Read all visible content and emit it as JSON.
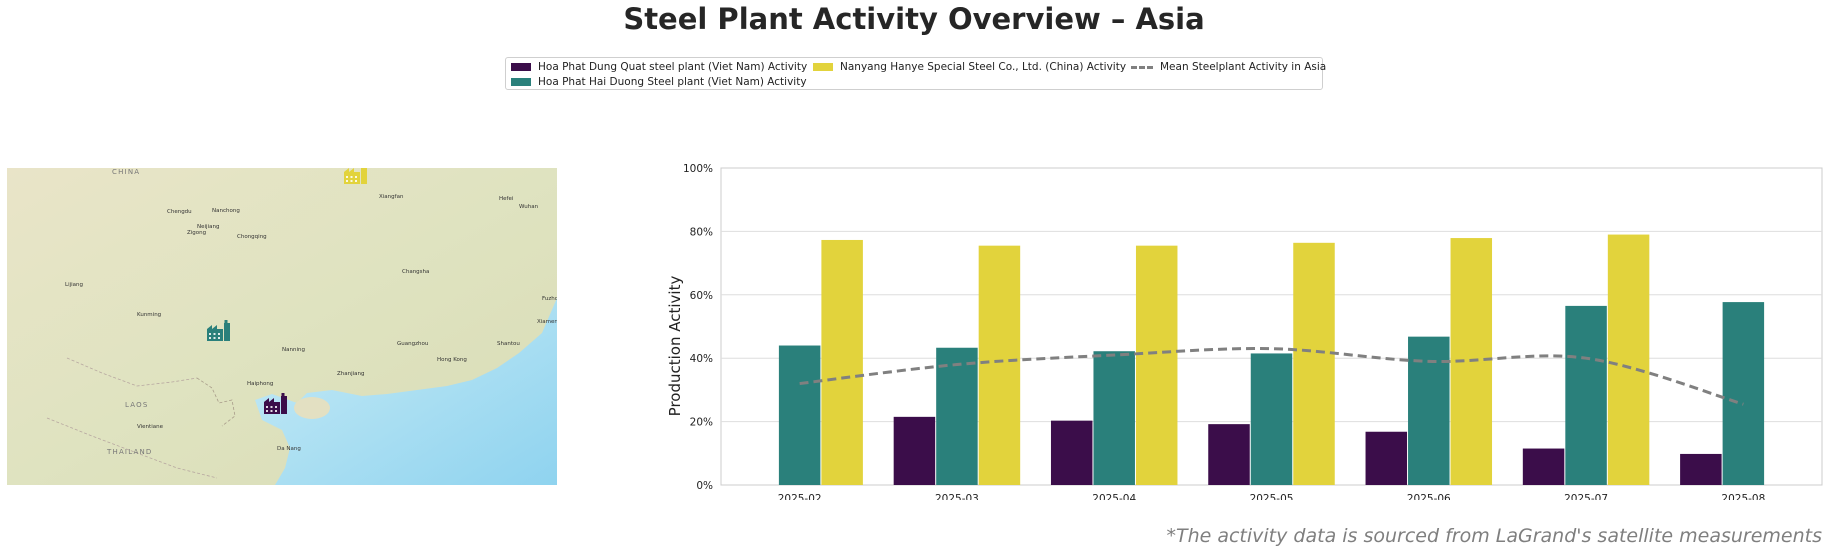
{
  "title": "Steel Plant Activity Overview – Asia",
  "footnote": "*The activity data is sourced from LaGrand's satellite measurements",
  "legend": {
    "items": [
      {
        "label": "Hoa Phat Dung Quat steel plant (Viet Nam) Activity",
        "color": "#3b0d4a"
      },
      {
        "label": "Hoa Phat Hai Duong Steel plant (Viet Nam) Activity",
        "color": "#2a807b"
      },
      {
        "label": "Nanyang Hanye Special Steel Co., Ltd. (China) Activity",
        "color": "#e2d33c"
      },
      {
        "label": "Mean Steelplant Activity in Asia",
        "color": "#808080"
      }
    ]
  },
  "map": {
    "place_labels": [
      {
        "text": "CHINA"
      },
      {
        "text": "Chengdu"
      },
      {
        "text": "Nanchong"
      },
      {
        "text": "Neijiang"
      },
      {
        "text": "Zigong"
      },
      {
        "text": "Chongqing"
      },
      {
        "text": "Lijiang"
      },
      {
        "text": "Kunming"
      },
      {
        "text": "Xiangfan"
      },
      {
        "text": "Wuhan"
      },
      {
        "text": "Hefei"
      },
      {
        "text": "Changsha"
      },
      {
        "text": "Nanning"
      },
      {
        "text": "Guangzhou"
      },
      {
        "text": "Hong Kong"
      },
      {
        "text": "Zhanjiang"
      },
      {
        "text": "Haiphong"
      },
      {
        "text": "Vientiane"
      },
      {
        "text": "Da Nang"
      },
      {
        "text": "THAILAND"
      },
      {
        "text": "LAOS"
      },
      {
        "text": "Fuzhou"
      },
      {
        "text": "Shantou"
      },
      {
        "text": "Xiamen"
      }
    ],
    "markers": [
      {
        "name": "Nanyang Hanye Special Steel Co., Ltd. (China)",
        "color": "#e2d33c",
        "icon": "factory-icon"
      },
      {
        "name": "Hoa Phat Hai Duong Steel plant (Viet Nam)",
        "color": "#2a807b",
        "icon": "factory-icon"
      },
      {
        "name": "Hoa Phat Dung Quat steel plant (Viet Nam)",
        "color": "#3b0d4a",
        "icon": "factory-icon"
      }
    ]
  },
  "chart_data": {
    "type": "bar",
    "title": "Steel Plant Activity Overview – Asia",
    "ylabel": "Production Activity",
    "xlabel": "",
    "ylim": [
      0,
      100
    ],
    "yticks": [
      "0%",
      "20%",
      "40%",
      "60%",
      "80%",
      "100%"
    ],
    "grid": true,
    "categories": [
      "2025-02",
      "2025-03",
      "2025-04",
      "2025-05",
      "2025-06",
      "2025-07",
      "2025-08"
    ],
    "series": [
      {
        "name": "Hoa Phat Dung Quat steel plant (Viet Nam) Activity",
        "color": "#3b0d4a",
        "values": [
          null,
          21.5,
          20.3,
          19.2,
          16.8,
          11.5,
          9.8
        ]
      },
      {
        "name": "Hoa Phat Hai Duong Steel plant (Viet Nam) Activity",
        "color": "#2a807b",
        "values": [
          44.0,
          43.3,
          42.2,
          41.5,
          46.8,
          56.5,
          57.7
        ]
      },
      {
        "name": "Nanyang Hanye Special Steel Co., Ltd. (China) Activity",
        "color": "#e2d33c",
        "values": [
          77.3,
          75.5,
          75.5,
          76.4,
          77.9,
          79.0,
          null
        ]
      },
      {
        "name": "Mean Steelplant Activity in Asia",
        "color": "#808080",
        "style": "dashed-line",
        "values": [
          32.0,
          38.0,
          41.0,
          43.0,
          39.0,
          40.0,
          25.5
        ]
      }
    ]
  }
}
